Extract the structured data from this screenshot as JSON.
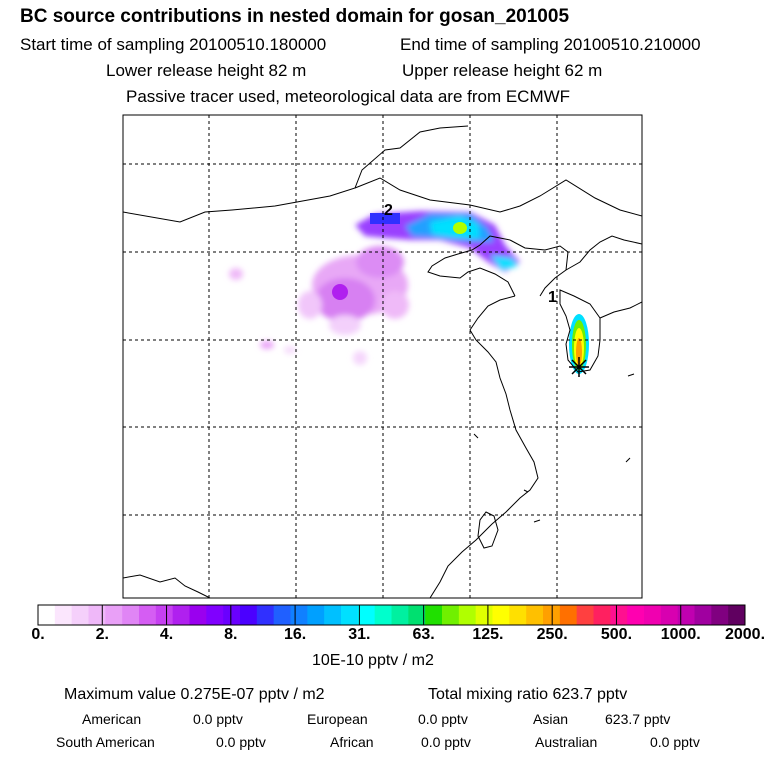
{
  "header": {
    "title": "BC  source contributions in nested domain for gosan_201005",
    "start": "Start time of sampling 20100510.180000",
    "end": "End time of sampling 20100510.210000",
    "lower": "Lower release height   82 m",
    "upper": "Upper release height   62 m",
    "tracer": "Passive tracer used, meteorological data are from ECMWF"
  },
  "map": {
    "labels": [
      "1",
      "2"
    ]
  },
  "colorbar": {
    "ticks": [
      "0.",
      "2.",
      "4.",
      "8.",
      "16.",
      "31.",
      "63.",
      "125.",
      "250.",
      "500.",
      "1000.",
      "2000."
    ],
    "colors": [
      "#ffffff",
      "#fbe6fd",
      "#f5d0fb",
      "#efb8f9",
      "#e9a0f7",
      "#e085f5",
      "#d55df3",
      "#c640f1",
      "#b020ef",
      "#9a00ef",
      "#8000ff",
      "#6a00ff",
      "#4b00ff",
      "#3030ff",
      "#2060ff",
      "#1080ff",
      "#00a0ff",
      "#00c0ff",
      "#00e0ff",
      "#00ffff",
      "#00ffcc",
      "#00f0a0",
      "#00e070",
      "#20e000",
      "#70f000",
      "#b0ff00",
      "#e0ff00",
      "#ffff00",
      "#ffe000",
      "#ffc000",
      "#ffa000",
      "#ff7000",
      "#ff4040",
      "#ff2060",
      "#ff1090",
      "#ff00b0",
      "#f000b0",
      "#d800b0",
      "#c000b0",
      "#a000a0",
      "#800080",
      "#600060"
    ],
    "unit": "10E-10 pptv / m2"
  },
  "stats": {
    "max": "Maximum value  0.275E-07 pptv / m2",
    "total": "Total mixing ratio      623.7 pptv",
    "rows": [
      [
        {
          "label": "American",
          "value": "0.0 pptv"
        },
        {
          "label": "European",
          "value": "0.0 pptv"
        },
        {
          "label": "Asian",
          "value": "623.7 pptv"
        }
      ],
      [
        {
          "label": "South American",
          "value": "0.0 pptv"
        },
        {
          "label": "African",
          "value": "0.0 pptv"
        },
        {
          "label": "Australian",
          "value": "0.0 pptv"
        }
      ]
    ]
  }
}
